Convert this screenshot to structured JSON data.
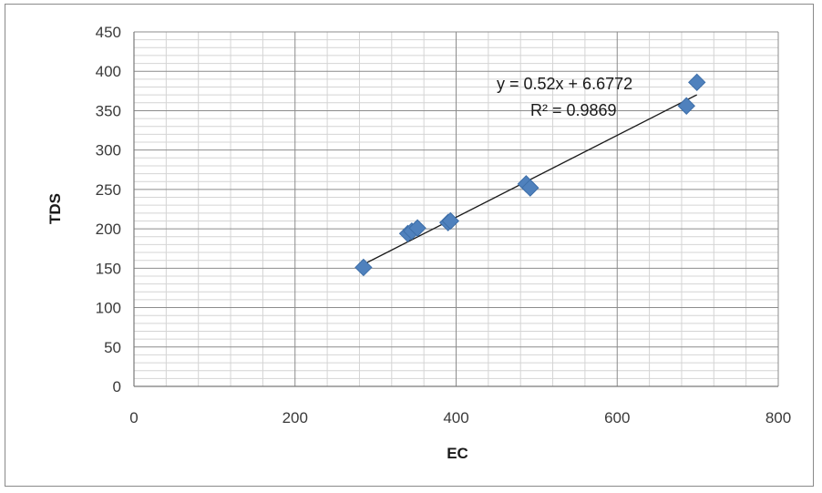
{
  "chart_data": {
    "type": "scatter",
    "title": "",
    "xlabel": "EC",
    "ylabel": "TDS",
    "xlim": [
      0,
      800
    ],
    "ylim": [
      0,
      450
    ],
    "x_major_ticks": [
      0,
      200,
      400,
      600,
      800
    ],
    "y_major_ticks": [
      0,
      50,
      100,
      150,
      200,
      250,
      300,
      350,
      400,
      450
    ],
    "x_minor_step": 40,
    "y_minor_step": 10,
    "grid": true,
    "legend": "none",
    "marker": "diamond",
    "marker_color": "#4f81bd",
    "trendline_color": "#1a1a1a",
    "series": [
      {
        "points": [
          {
            "x": 285,
            "y": 151
          },
          {
            "x": 340,
            "y": 194
          },
          {
            "x": 345,
            "y": 197
          },
          {
            "x": 352,
            "y": 201
          },
          {
            "x": 390,
            "y": 208
          },
          {
            "x": 393,
            "y": 210
          },
          {
            "x": 487,
            "y": 257
          },
          {
            "x": 492,
            "y": 252
          },
          {
            "x": 686,
            "y": 356
          },
          {
            "x": 699,
            "y": 386
          }
        ]
      }
    ],
    "trendline": {
      "slope": 0.52,
      "intercept": 6.6772,
      "x_range": [
        285,
        699
      ],
      "equation_label": "y = 0.52x + 6.6772",
      "r2_label": "R² = 0.9869"
    }
  }
}
